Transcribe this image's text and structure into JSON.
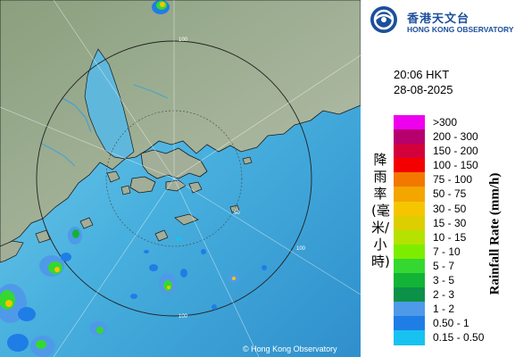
{
  "title": "",
  "logo": {
    "name_zh": "香港天文台",
    "name_en": "HONG KONG OBSERVATORY",
    "brand_color": "#1b4f9c"
  },
  "timestamp": {
    "time": "20:06 HKT",
    "date": "28-08-2025"
  },
  "legend": {
    "axis_label_zh": "降雨率(毫米/小時)",
    "axis_label_en": "Rainfall Rate (mm/h)",
    "items": [
      {
        "label": ">300",
        "color": "#ee00ee"
      },
      {
        "label": "200 - 300",
        "color": "#b5006e"
      },
      {
        "label": "150 - 200",
        "color": "#d3003c"
      },
      {
        "label": "100 - 150",
        "color": "#f40000"
      },
      {
        "label": "75 - 100",
        "color": "#f27800"
      },
      {
        "label": "50 - 75",
        "color": "#f3a500"
      },
      {
        "label": "30 - 50",
        "color": "#f5c600"
      },
      {
        "label": "15 - 30",
        "color": "#dcce00"
      },
      {
        "label": "10 - 15",
        "color": "#b5e200"
      },
      {
        "label": "7 - 10",
        "color": "#7ded00"
      },
      {
        "label": "5 - 7",
        "color": "#35d830"
      },
      {
        "label": "3 - 5",
        "color": "#12b336"
      },
      {
        "label": "2 - 3",
        "color": "#0c9148"
      },
      {
        "label": "1 - 2",
        "color": "#4f9ae8"
      },
      {
        "label": "0.50 - 1",
        "color": "#1f7de6"
      },
      {
        "label": "0.15 - 0.50",
        "color": "#18c2f0"
      }
    ]
  },
  "map": {
    "range_rings_km": [
      "50",
      "100"
    ],
    "land_color": "#96a88c",
    "sea_color": "#3fa7d8"
  },
  "copyright": "© Hong Kong Observatory"
}
